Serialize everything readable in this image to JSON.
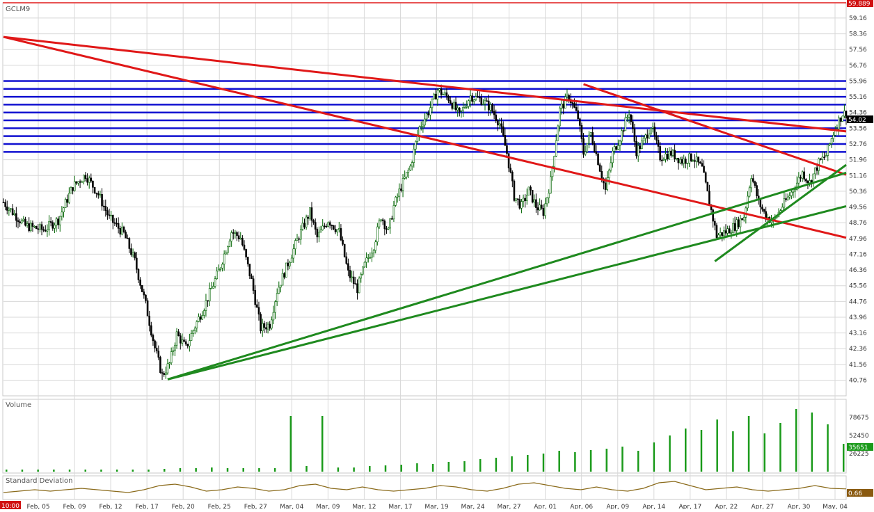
{
  "symbol": "GCLM9",
  "last_price_label": "59.889",
  "current_price_label": "54.02",
  "volume_label": "Volume",
  "volume_last_label": "35651",
  "stddev_label": "Standard Deviation",
  "stddev_last_label": "0.66",
  "time_label": "10:00",
  "colors": {
    "up_candle": "#006400",
    "down_candle": "#000000",
    "trendline_red": "#e01818",
    "trendline_green": "#1f8a1f",
    "support_resistance": "#1010d0",
    "volume_bar": "#1a9a1a",
    "stddev_line": "#8a6a1a",
    "grid": "#d8d8d8",
    "price_flag": "#d01010"
  },
  "chart_data": {
    "type": "candlestick",
    "price_axis": {
      "ylim": [
        40.0,
        59.9
      ],
      "ticks": [
        "59.16",
        "58.36",
        "57.56",
        "56.76",
        "55.96",
        "55.16",
        "54.36",
        "53.56",
        "52.76",
        "51.96",
        "51.16",
        "50.36",
        "49.56",
        "48.76",
        "47.96",
        "47.16",
        "46.36",
        "45.56",
        "44.76",
        "43.96",
        "43.16",
        "42.36",
        "41.56",
        "40.76"
      ]
    },
    "x_axis": {
      "ticks": [
        "Feb, 05",
        "Feb, 09",
        "Feb, 12",
        "Feb, 17",
        "Feb, 20",
        "Feb, 25",
        "Feb, 27",
        "Mar, 04",
        "Mar, 09",
        "Mar, 12",
        "Mar, 17",
        "Mar, 19",
        "Mar, 24",
        "Mar, 27",
        "Apr, 01",
        "Apr, 06",
        "Apr, 09",
        "Apr, 14",
        "Apr, 17",
        "Apr, 22",
        "Apr, 27",
        "Apr, 30",
        "May, 04"
      ]
    },
    "price_path": [
      [
        0,
        49.8
      ],
      [
        12,
        48.6
      ],
      [
        22,
        48.4
      ],
      [
        30,
        48.9
      ],
      [
        38,
        50.6
      ],
      [
        45,
        51.2
      ],
      [
        52,
        50.2
      ],
      [
        58,
        49.0
      ],
      [
        66,
        48.2
      ],
      [
        72,
        46.8
      ],
      [
        78,
        44.6
      ],
      [
        83,
        42.4
      ],
      [
        87,
        41.0
      ],
      [
        91,
        41.6
      ],
      [
        95,
        43.1
      ],
      [
        100,
        42.4
      ],
      [
        104,
        43.3
      ],
      [
        110,
        44.5
      ],
      [
        118,
        46.3
      ],
      [
        125,
        48.3
      ],
      [
        130,
        48.0
      ],
      [
        136,
        45.8
      ],
      [
        141,
        43.4
      ],
      [
        146,
        43.6
      ],
      [
        150,
        45.3
      ],
      [
        156,
        46.7
      ],
      [
        162,
        48.1
      ],
      [
        168,
        49.3
      ],
      [
        172,
        48.0
      ],
      [
        178,
        48.9
      ],
      [
        184,
        48.3
      ],
      [
        189,
        46.2
      ],
      [
        194,
        45.4
      ],
      [
        198,
        46.6
      ],
      [
        203,
        47.6
      ],
      [
        207,
        49.1
      ],
      [
        211,
        48.3
      ],
      [
        214,
        49.6
      ],
      [
        218,
        50.6
      ],
      [
        223,
        51.6
      ],
      [
        228,
        53.6
      ],
      [
        233,
        54.4
      ],
      [
        238,
        55.5
      ],
      [
        244,
        55.1
      ],
      [
        250,
        54.2
      ],
      [
        256,
        55.2
      ],
      [
        262,
        55.0
      ],
      [
        267,
        54.6
      ],
      [
        272,
        53.8
      ],
      [
        276,
        52.3
      ],
      [
        280,
        50.1
      ],
      [
        284,
        49.6
      ],
      [
        288,
        50.4
      ],
      [
        292,
        49.6
      ],
      [
        296,
        49.3
      ],
      [
        300,
        50.9
      ],
      [
        305,
        54.5
      ],
      [
        310,
        55.2
      ],
      [
        315,
        54.1
      ],
      [
        318,
        52.3
      ],
      [
        322,
        53.3
      ],
      [
        326,
        51.9
      ],
      [
        330,
        50.4
      ],
      [
        334,
        52.3
      ],
      [
        338,
        53.1
      ],
      [
        343,
        54.4
      ],
      [
        347,
        52.4
      ],
      [
        351,
        52.9
      ],
      [
        355,
        53.7
      ],
      [
        360,
        52.1
      ],
      [
        366,
        52.3
      ],
      [
        372,
        51.9
      ],
      [
        378,
        52.1
      ],
      [
        383,
        51.5
      ],
      [
        387,
        49.8
      ],
      [
        391,
        48.1
      ],
      [
        396,
        48.3
      ],
      [
        401,
        48.6
      ],
      [
        406,
        49.1
      ],
      [
        410,
        51.2
      ],
      [
        414,
        49.8
      ],
      [
        418,
        49.1
      ],
      [
        422,
        48.8
      ],
      [
        427,
        49.6
      ],
      [
        432,
        50.3
      ],
      [
        438,
        51.3
      ],
      [
        442,
        50.8
      ],
      [
        447,
        51.8
      ],
      [
        451,
        52.2
      ],
      [
        456,
        53.6
      ],
      [
        460,
        54.3
      ]
    ],
    "volume": [
      3,
      3,
      3,
      3,
      3,
      3,
      3,
      3,
      3,
      3,
      4,
      5,
      5,
      6,
      5,
      5,
      5,
      5,
      80,
      8,
      80,
      6,
      6,
      8,
      9,
      10,
      12,
      11,
      14,
      15,
      18,
      20,
      22,
      24,
      26,
      30,
      28,
      31,
      33,
      36,
      30,
      42,
      52,
      62,
      60,
      75,
      58,
      80,
      55,
      70,
      90,
      85,
      68,
      40
    ],
    "volume_axis": {
      "ticks": [
        "78675",
        "52450",
        "26225"
      ]
    },
    "stddev": [
      0.4,
      0.5,
      0.6,
      0.5,
      0.6,
      0.7,
      0.6,
      0.5,
      0.4,
      0.6,
      0.9,
      1.0,
      0.8,
      0.5,
      0.6,
      0.8,
      0.7,
      0.5,
      0.6,
      0.9,
      1.0,
      0.7,
      0.6,
      0.8,
      0.6,
      0.5,
      0.6,
      0.7,
      0.9,
      0.8,
      0.6,
      0.5,
      0.7,
      1.0,
      1.1,
      0.9,
      0.7,
      0.6,
      0.8,
      0.6,
      0.5,
      0.7,
      1.1,
      1.2,
      0.9,
      0.6,
      0.7,
      0.8,
      0.6,
      0.5,
      0.6,
      0.7,
      0.9,
      0.7,
      0.66
    ],
    "horizontal_levels": [
      55.96,
      55.56,
      55.16,
      54.76,
      54.36,
      53.96,
      53.56,
      53.16,
      52.76,
      52.36
    ],
    "trendlines_red": [
      [
        [
          0,
          58.2
        ],
        [
          462,
          53.4
        ]
      ],
      [
        [
          0,
          58.2
        ],
        [
          462,
          48.0
        ]
      ],
      [
        [
          318,
          55.8
        ],
        [
          462,
          51.2
        ]
      ]
    ],
    "trendlines_green": [
      [
        [
          90,
          40.8
        ],
        [
          462,
          51.3
        ]
      ],
      [
        [
          90,
          40.8
        ],
        [
          462,
          49.6
        ]
      ],
      [
        [
          390,
          46.8
        ],
        [
          462,
          51.7
        ]
      ]
    ]
  }
}
